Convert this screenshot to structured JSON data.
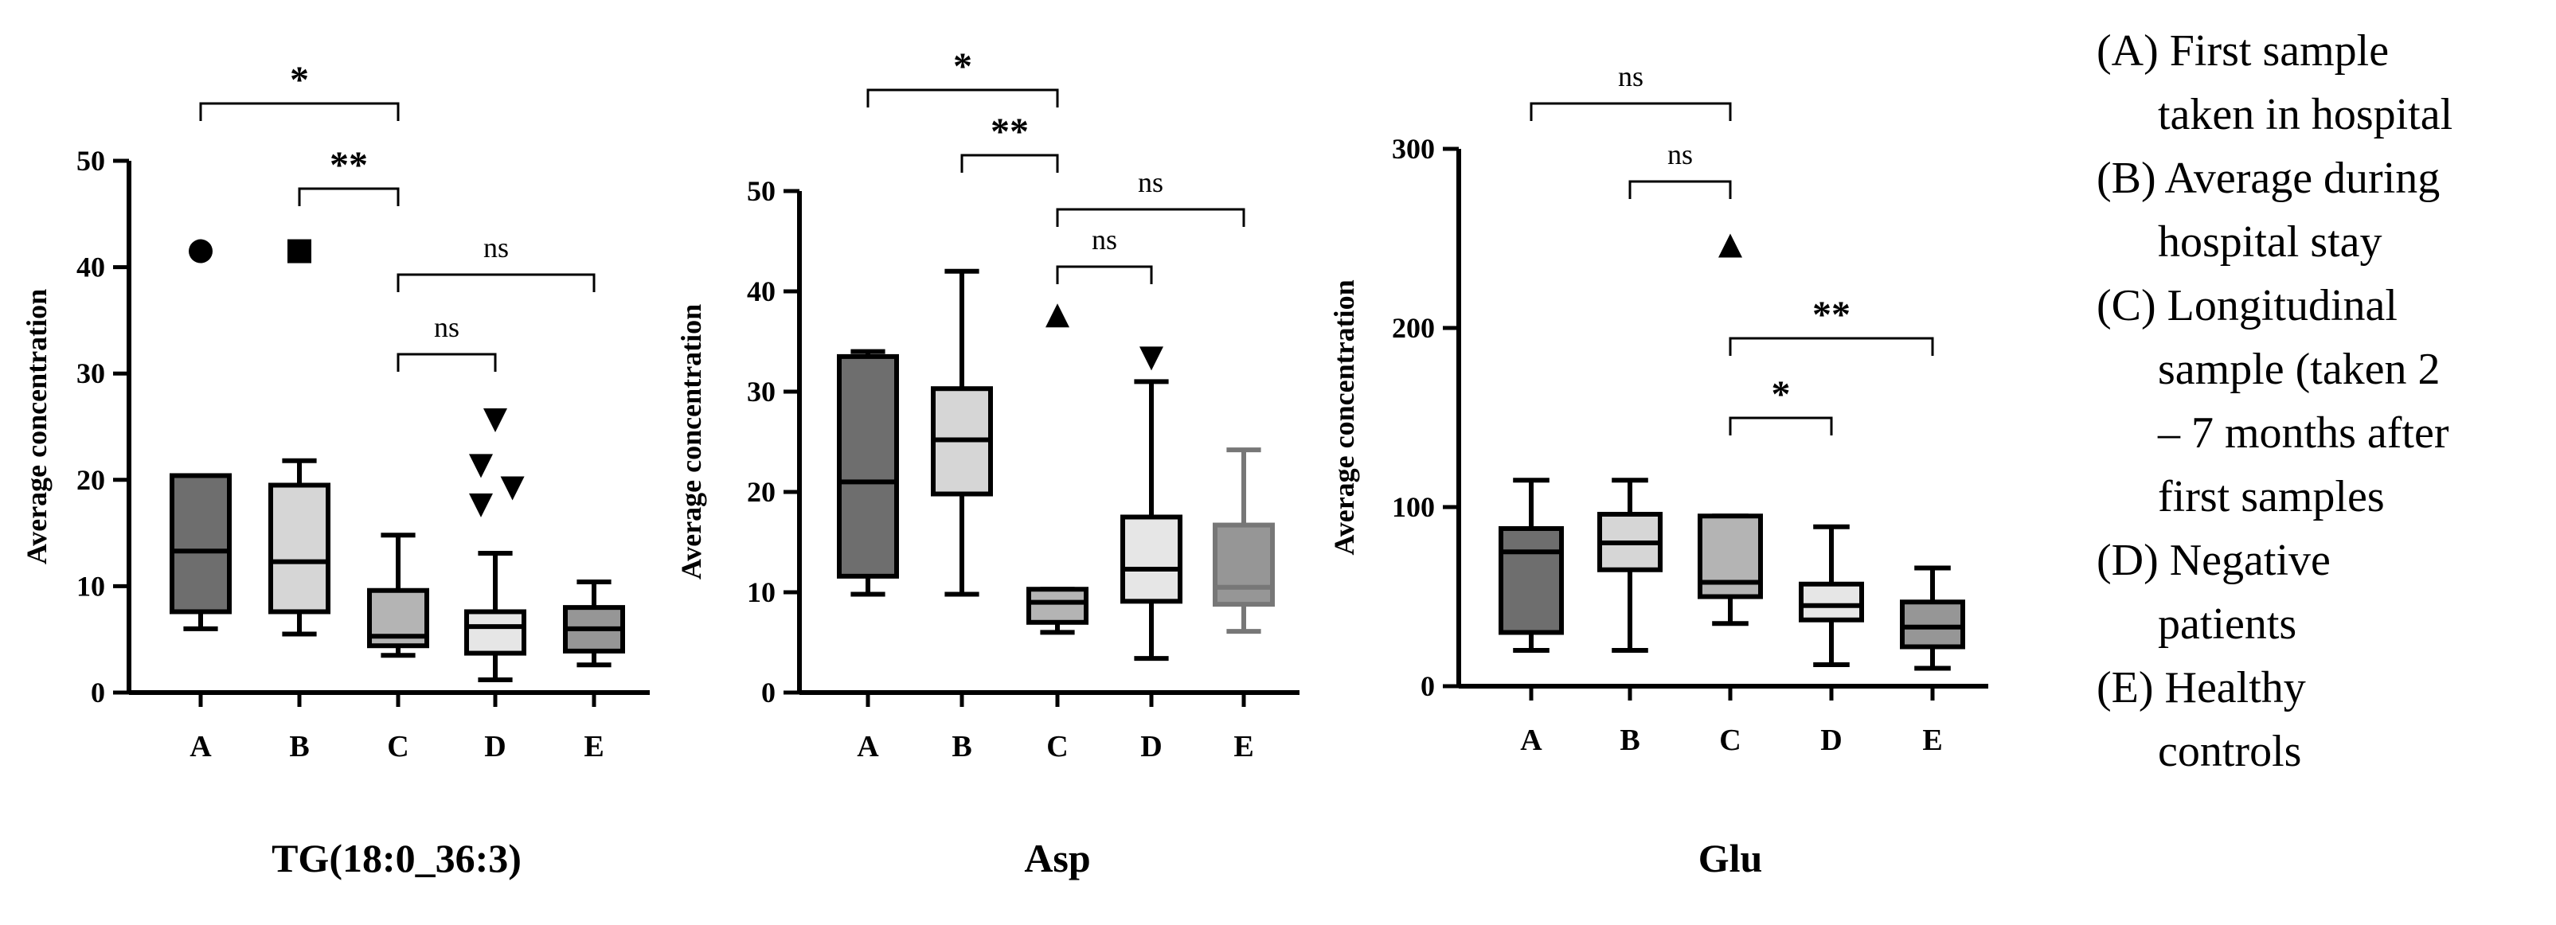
{
  "colors": {
    "A": "#6e6e6e",
    "B": "#d6d6d6",
    "C": "#b4b4b4",
    "D": "#e6e6e6",
    "E": "#969696",
    "line": "#000000",
    "E_asp_line": "#777777"
  },
  "legend": [
    {
      "key": "A",
      "lines": [
        "(A) First sample",
        "taken in hospital"
      ]
    },
    {
      "key": "B",
      "lines": [
        "(B) Average during",
        "hospital stay"
      ]
    },
    {
      "key": "C",
      "lines": [
        "(C) Longitudinal",
        "sample (taken 2",
        "– 7 months after",
        "first samples"
      ]
    },
    {
      "key": "D",
      "lines": [
        "(D) Negative",
        "patients"
      ]
    },
    {
      "key": "E",
      "lines": [
        "(E) Healthy",
        "controls"
      ]
    }
  ],
  "chart_data": [
    {
      "type": "box",
      "title": "TG(18:0_36:3)",
      "ylabel": "Average concentration",
      "xlabel": "",
      "ylim": [
        0,
        50
      ],
      "yticks": [
        0,
        10,
        20,
        30,
        40,
        50
      ],
      "categories": [
        "A",
        "B",
        "C",
        "D",
        "E"
      ],
      "boxes": [
        {
          "cat": "A",
          "whisker_low": 6,
          "q1": 7.6,
          "median": 13.3,
          "q3": 20.4,
          "whisker_high": 20.4
        },
        {
          "cat": "B",
          "whisker_low": 5.5,
          "q1": 7.6,
          "median": 12.3,
          "q3": 19.5,
          "whisker_high": 21.8
        },
        {
          "cat": "C",
          "whisker_low": 3.5,
          "q1": 4.4,
          "median": 5.3,
          "q3": 9.6,
          "whisker_high": 14.8
        },
        {
          "cat": "D",
          "whisker_low": 1.2,
          "q1": 3.7,
          "median": 6.2,
          "q3": 7.6,
          "whisker_high": 13.1
        },
        {
          "cat": "E",
          "whisker_low": 2.6,
          "q1": 3.9,
          "median": 6.0,
          "q3": 8.0,
          "whisker_high": 10.4
        }
      ],
      "outliers": [
        {
          "cat": "A",
          "value": 41.5,
          "shape": "circle"
        },
        {
          "cat": "B",
          "value": 41.5,
          "shape": "square"
        },
        {
          "cat": "D",
          "value": 25.6,
          "shape": "tri-down",
          "offset": 0
        },
        {
          "cat": "D",
          "value": 21.3,
          "shape": "tri-down",
          "offset": -0.25
        },
        {
          "cat": "D",
          "value": 19.2,
          "shape": "tri-down",
          "offset": 0.3
        },
        {
          "cat": "D",
          "value": 17.6,
          "shape": "tri-down",
          "offset": -0.25
        }
      ],
      "significance": [
        {
          "from": "A",
          "to": "C",
          "label": "*",
          "level": 0
        },
        {
          "from": "B",
          "to": "C",
          "label": "**",
          "level": 1
        },
        {
          "from": "C",
          "to": "E",
          "label": "ns",
          "level": 2
        },
        {
          "from": "C",
          "to": "D",
          "label": "ns",
          "level": 3
        }
      ]
    },
    {
      "type": "box",
      "title": "Asp",
      "ylabel": "Average concentration",
      "xlabel": "",
      "ylim": [
        0,
        50
      ],
      "yticks": [
        0,
        10,
        20,
        30,
        40,
        50
      ],
      "categories": [
        "A",
        "B",
        "C",
        "D",
        "E"
      ],
      "boxes": [
        {
          "cat": "A",
          "whisker_low": 9.8,
          "q1": 11.6,
          "median": 21.0,
          "q3": 33.5,
          "whisker_high": 34.0
        },
        {
          "cat": "B",
          "whisker_low": 9.8,
          "q1": 19.8,
          "median": 25.2,
          "q3": 30.3,
          "whisker_high": 42.0
        },
        {
          "cat": "C",
          "whisker_low": 6.0,
          "q1": 7.0,
          "median": 9.0,
          "q3": 10.3,
          "whisker_high": 10.3
        },
        {
          "cat": "D",
          "whisker_low": 3.4,
          "q1": 9.1,
          "median": 12.3,
          "q3": 17.5,
          "whisker_high": 31.0
        },
        {
          "cat": "E",
          "whisker_low": 6.1,
          "q1": 8.8,
          "median": 10.5,
          "q3": 16.7,
          "whisker_high": 24.2
        }
      ],
      "outliers": [
        {
          "cat": "C",
          "value": 37.6,
          "shape": "tri-up"
        },
        {
          "cat": "D",
          "value": 33.3,
          "shape": "tri-down"
        }
      ],
      "significance": [
        {
          "from": "A",
          "to": "C",
          "label": "*",
          "level": 0
        },
        {
          "from": "B",
          "to": "C",
          "label": "**",
          "level": 1
        },
        {
          "from": "C",
          "to": "E",
          "label": "ns",
          "level": 2
        },
        {
          "from": "C",
          "to": "D",
          "label": "ns",
          "level": 3
        }
      ]
    },
    {
      "type": "box",
      "title": "Glu",
      "ylabel": "Average concentration",
      "xlabel": "",
      "ylim": [
        0,
        300
      ],
      "yticks": [
        0,
        100,
        200,
        300
      ],
      "categories": [
        "A",
        "B",
        "C",
        "D",
        "E"
      ],
      "boxes": [
        {
          "cat": "A",
          "whisker_low": 20,
          "q1": 30,
          "median": 75,
          "q3": 88,
          "whisker_high": 115
        },
        {
          "cat": "B",
          "whisker_low": 20,
          "q1": 65,
          "median": 80,
          "q3": 96,
          "whisker_high": 115
        },
        {
          "cat": "C",
          "whisker_low": 35,
          "q1": 50,
          "median": 58,
          "q3": 95,
          "whisker_high": 95
        },
        {
          "cat": "D",
          "whisker_low": 12,
          "q1": 37,
          "median": 45,
          "q3": 57,
          "whisker_high": 89
        },
        {
          "cat": "E",
          "whisker_low": 10,
          "q1": 22,
          "median": 33,
          "q3": 47,
          "whisker_high": 66
        }
      ],
      "outliers": [
        {
          "cat": "C",
          "value": 246,
          "shape": "tri-up"
        }
      ],
      "significance": [
        {
          "from": "A",
          "to": "C",
          "label": "ns",
          "level": 0
        },
        {
          "from": "B",
          "to": "C",
          "label": "ns",
          "level": 1
        },
        {
          "from": "C",
          "to": "E",
          "label": "**",
          "level": 2
        },
        {
          "from": "C",
          "to": "D",
          "label": "*",
          "level": 3
        }
      ]
    }
  ]
}
